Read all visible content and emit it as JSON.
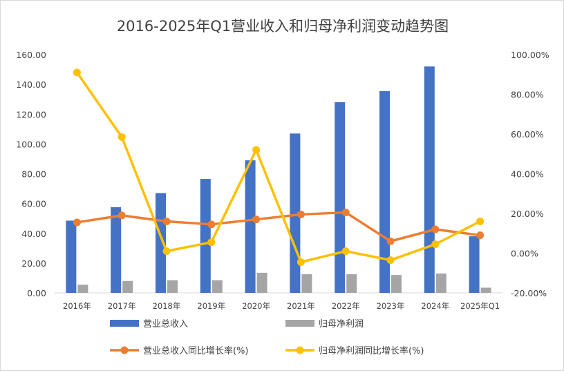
{
  "chart_data": {
    "type": "bar",
    "title": "2016-2025年Q1营业收入和归母净利润变动趋势图",
    "categories": [
      "2016年",
      "2017年",
      "2018年",
      "2019年",
      "2020年",
      "2021年",
      "2022年",
      "2023年",
      "2024年",
      "2025年Q1"
    ],
    "left_axis": {
      "ylim": [
        0,
        160
      ],
      "ticks": [
        "0.00",
        "20.00",
        "40.00",
        "60.00",
        "80.00",
        "100.00",
        "120.00",
        "140.00",
        "160.00"
      ]
    },
    "right_axis": {
      "ylim": [
        -20,
        100
      ],
      "ticks": [
        "-20.00%",
        "0.00%",
        "20.00%",
        "40.00%",
        "60.00%",
        "80.00%",
        "100.00%"
      ]
    },
    "series": [
      {
        "name": "营业总收入",
        "type": "bar",
        "axis": "left",
        "color": "#4472c4",
        "values": [
          48.5,
          57.5,
          67.0,
          76.5,
          89.0,
          107.0,
          128.0,
          135.5,
          152.0,
          38.0
        ]
      },
      {
        "name": "归母净利润",
        "type": "bar",
        "axis": "left",
        "color": "#a5a5a5",
        "values": [
          5.5,
          8.0,
          8.5,
          8.5,
          13.5,
          12.5,
          12.5,
          12.0,
          13.0,
          3.5
        ]
      },
      {
        "name": "营业总收入同比增长率(%)",
        "type": "line",
        "axis": "right",
        "color": "#ed7d31",
        "values": [
          15.5,
          19.0,
          16.0,
          14.5,
          17.0,
          19.5,
          20.5,
          6.0,
          12.0,
          9.0
        ]
      },
      {
        "name": "归母净利润同比增长率(%)",
        "type": "line",
        "axis": "right",
        "color": "#ffc000",
        "values": [
          91.0,
          58.5,
          1.0,
          5.5,
          52.0,
          -4.5,
          1.0,
          -3.5,
          4.5,
          16.0
        ]
      }
    ],
    "grid": false,
    "legend_position": "bottom"
  }
}
